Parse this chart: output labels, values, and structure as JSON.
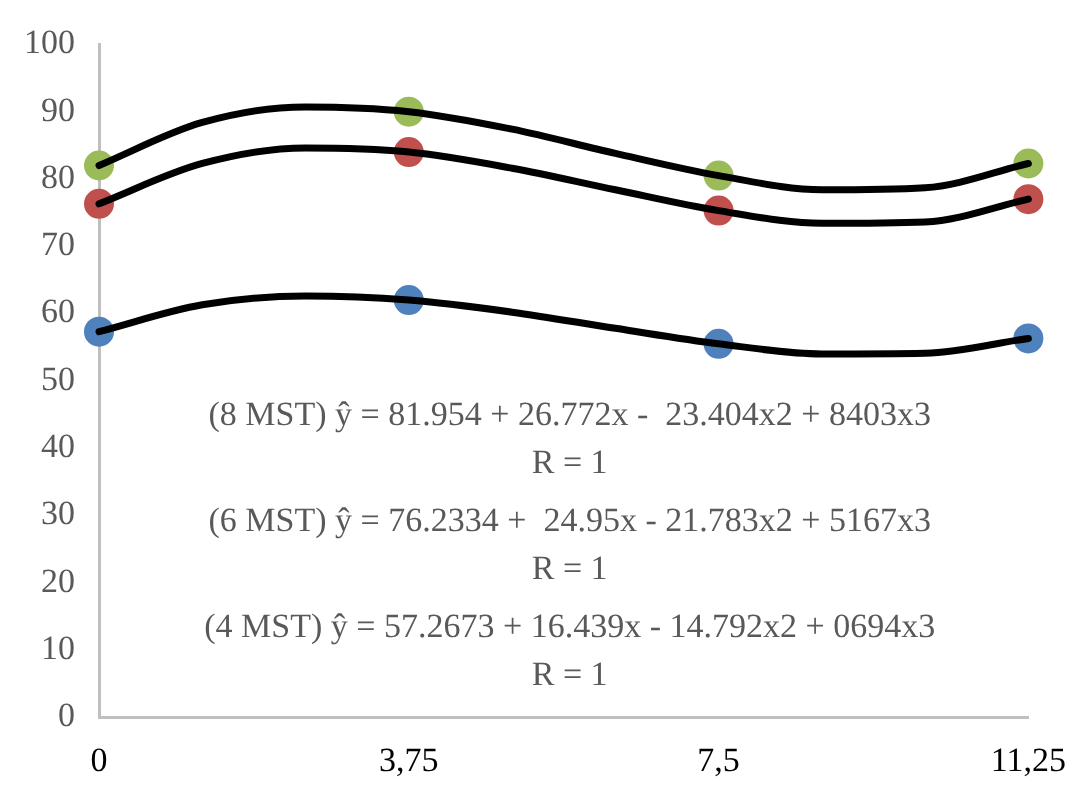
{
  "chart_data": {
    "type": "scatter",
    "x": [
      0,
      3.75,
      7.5,
      11.25
    ],
    "series": [
      {
        "color": "#9bbb59",
        "values": [
          82,
          90,
          80.5,
          82.3
        ],
        "marker": "circle"
      },
      {
        "color": "#c0504d",
        "values": [
          76.3,
          84,
          75.3,
          77
        ],
        "marker": "circle"
      },
      {
        "color": "#4f81bd",
        "values": [
          57.3,
          62,
          55.5,
          56.3
        ],
        "marker": "circle"
      },
      {
        "type": "line",
        "color": "#000000",
        "x": [
          0,
          1.25,
          2.5,
          3.75,
          5,
          6.25,
          7.5,
          8.75,
          10,
          11.25
        ],
        "values": [
          82,
          88.4,
          90.7,
          90,
          87.4,
          83.8,
          80.5,
          78.4,
          78.7,
          82.3
        ],
        "marker": "none",
        "line_style": "solid"
      },
      {
        "type": "line",
        "color": "#000000",
        "x": [
          0,
          1.25,
          2.5,
          3.75,
          5,
          6.25,
          7.5,
          8.75,
          10,
          11.25
        ],
        "values": [
          76.3,
          82.3,
          84.6,
          84,
          81.6,
          78.4,
          75.3,
          73.4,
          73.6,
          77
        ],
        "marker": "none",
        "line_style": "solid"
      },
      {
        "type": "line",
        "color": "#000000",
        "x": [
          0,
          1.25,
          2.5,
          3.75,
          5,
          6.25,
          7.5,
          8.75,
          10,
          11.25
        ],
        "values": [
          57.3,
          61.3,
          62.6,
          62,
          60.2,
          57.8,
          55.5,
          54,
          54.1,
          56.3
        ],
        "marker": "none",
        "line_style": "solid"
      }
    ],
    "xlim": [
      0,
      11.25
    ],
    "xticks": [
      0,
      {
        "value": 3.75,
        "label": "3,75"
      },
      {
        "value": 7.5,
        "label": "7,5"
      },
      {
        "value": 11.25,
        "label": "11,25"
      }
    ],
    "ylim": [
      0,
      100
    ],
    "yticks": [
      0,
      10,
      20,
      30,
      40,
      50,
      60,
      70,
      80,
      90,
      100
    ],
    "grid": false,
    "legend": false,
    "annotations": [
      "(8 MST) ŷ = 81.954 + 26.772x -  23.404x2 + 8403x3",
      "R = 1",
      "(6 MST) ŷ = 76.2334 +  24.95x - 21.783x2 + 5167x3",
      "R = 1",
      "(4 MST) ŷ = 57.2673 + 16.439x - 14.792x2 + 0694x3",
      "R = 1"
    ]
  }
}
